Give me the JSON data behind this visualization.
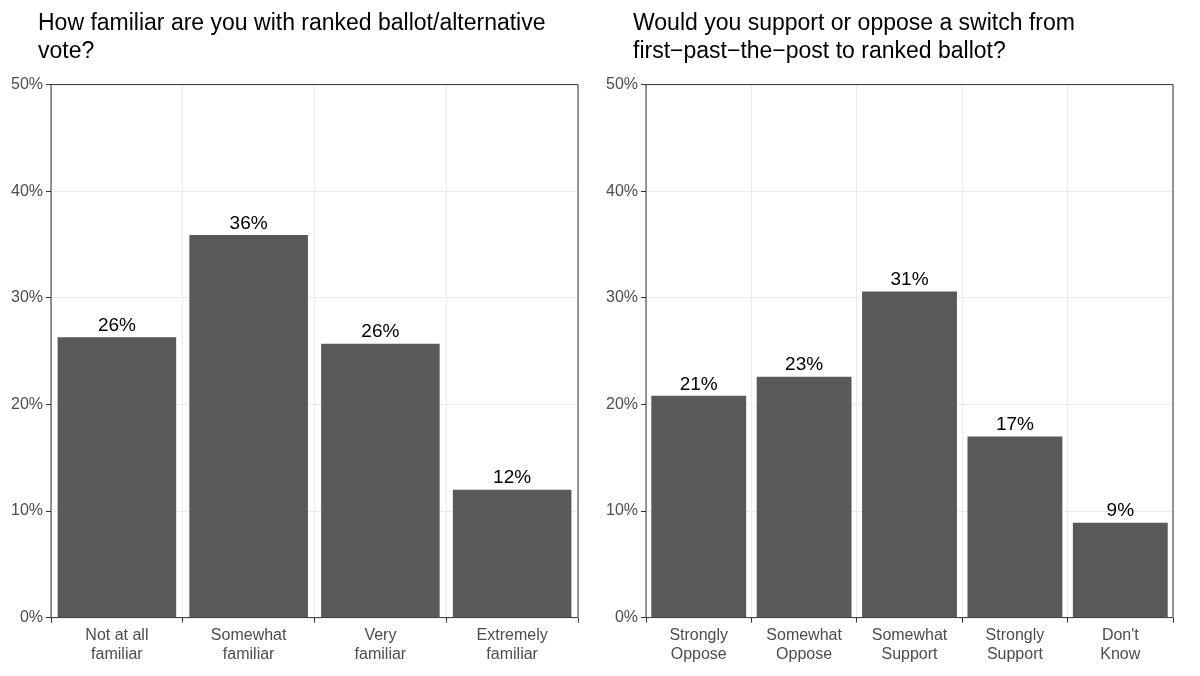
{
  "chart_data": [
    {
      "type": "bar",
      "title": "How familiar are you with ranked ballot/alternative vote?",
      "categories": [
        "Not at all familiar",
        "Somewhat familiar",
        "Very familiar",
        "Extremely familiar"
      ],
      "values": [
        26.3,
        35.9,
        25.7,
        12.0
      ],
      "value_labels": [
        "26%",
        "36%",
        "26%",
        "12%"
      ],
      "color": "#595959",
      "ylim": [
        0,
        50
      ],
      "yticks": [
        {
          "value": 0,
          "label": "0%"
        },
        {
          "value": 10,
          "label": "10%"
        },
        {
          "value": 20,
          "label": "20%"
        },
        {
          "value": 30,
          "label": "30%"
        },
        {
          "value": 40,
          "label": "40%"
        },
        {
          "value": 50,
          "label": "50%"
        }
      ],
      "grid": true,
      "legend": false
    },
    {
      "type": "bar",
      "title": "Would you support or oppose a switch from first−past−the−post to ranked ballot?",
      "categories": [
        "Strongly Oppose",
        "Somewhat Oppose",
        "Somewhat Support",
        "Strongly Support",
        "Don't Know"
      ],
      "values": [
        20.8,
        22.6,
        30.6,
        17.0,
        8.9
      ],
      "value_labels": [
        "21%",
        "23%",
        "31%",
        "17%",
        "9%"
      ],
      "color": "#595959",
      "ylim": [
        0,
        50
      ],
      "yticks": [
        {
          "value": 0,
          "label": "0%"
        },
        {
          "value": 10,
          "label": "10%"
        },
        {
          "value": 20,
          "label": "20%"
        },
        {
          "value": 30,
          "label": "30%"
        },
        {
          "value": 40,
          "label": "40%"
        },
        {
          "value": 50,
          "label": "50%"
        }
      ],
      "grid": true,
      "legend": false
    }
  ]
}
